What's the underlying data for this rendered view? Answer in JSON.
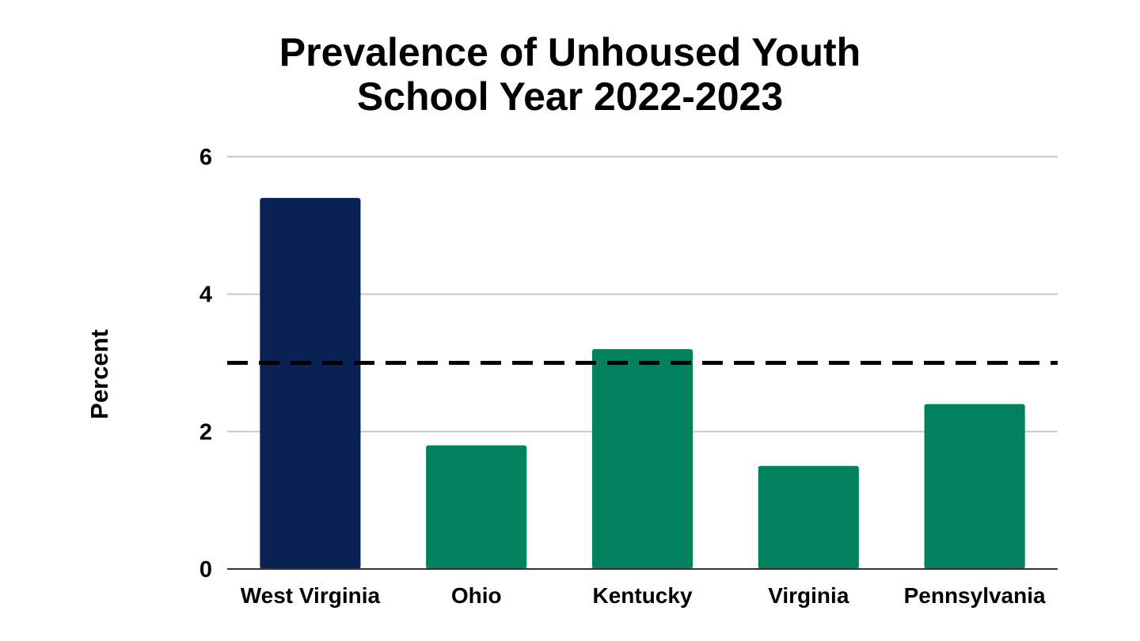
{
  "chart_data": {
    "type": "bar",
    "title": "Prevalence of Unhoused Youth",
    "subtitle": "School Year 2022-2023",
    "xlabel": "",
    "ylabel": "Percent",
    "categories": [
      "West Virginia",
      "Ohio",
      "Kentucky",
      "Virginia",
      "Pennsylvania"
    ],
    "values": [
      5.4,
      1.8,
      3.2,
      1.5,
      2.4
    ],
    "bar_colors": [
      "#0a2253",
      "#02825c",
      "#02825c",
      "#02825c",
      "#02825c"
    ],
    "ylim": [
      0,
      6
    ],
    "yticks": [
      0,
      2,
      4,
      6
    ],
    "reference_line": {
      "value": 3.0,
      "style": "dashed",
      "color": "#000000"
    },
    "grid": true,
    "legend": "none"
  }
}
